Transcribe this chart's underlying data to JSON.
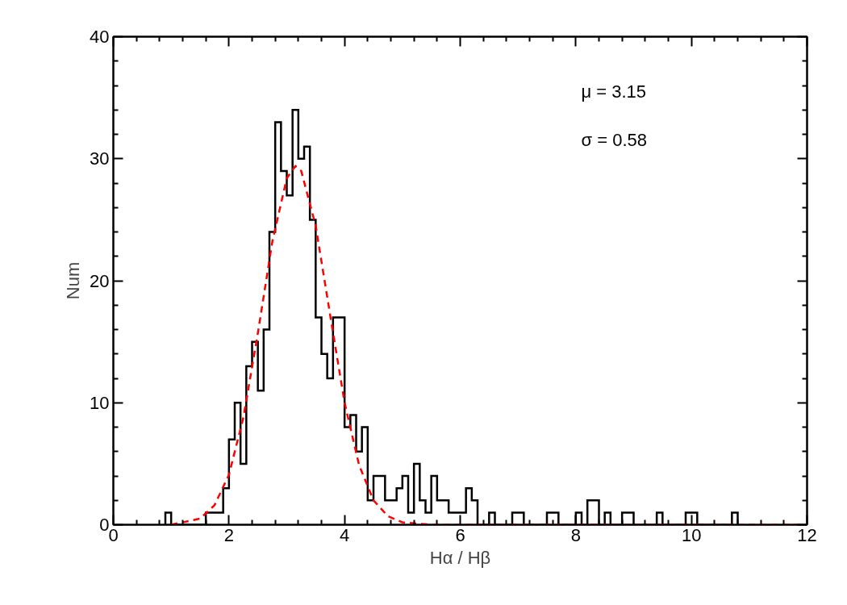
{
  "chart_data": {
    "type": "histogram",
    "xlabel": "Hα / Hβ",
    "ylabel": "Num",
    "annotations": [
      "μ = 3.15",
      "σ = 0.58"
    ],
    "bins": [
      0.9,
      1.0,
      1.1,
      1.2,
      1.3,
      1.4,
      1.5,
      1.6,
      1.7,
      1.8,
      1.9,
      2.0,
      2.1,
      2.2,
      2.3,
      2.4,
      2.5,
      2.6,
      2.7,
      2.8,
      2.9,
      3.0,
      3.1,
      3.2,
      3.3,
      3.4,
      3.5,
      3.6,
      3.7,
      3.8,
      3.9,
      4.0,
      4.1,
      4.2,
      4.3,
      4.4,
      4.5,
      4.6,
      4.7,
      4.8,
      4.9,
      5.0,
      5.1,
      5.2,
      5.3,
      5.4,
      5.5,
      5.6,
      5.7,
      5.8,
      5.9,
      6.0,
      6.1,
      6.2,
      6.3,
      6.4,
      6.5,
      6.6,
      6.7,
      6.8,
      6.9,
      7.0,
      7.1,
      7.2,
      7.3,
      7.4,
      7.5,
      7.6,
      7.7,
      7.8,
      7.9,
      8.0,
      8.1,
      8.2,
      8.3,
      8.4,
      8.5,
      8.6,
      8.7,
      8.8,
      8.9,
      9.0,
      9.1,
      9.2,
      9.3,
      9.4,
      9.5,
      9.6,
      9.7,
      9.8,
      9.9,
      10.0,
      10.1,
      10.2,
      10.3,
      10.4,
      10.5,
      10.6,
      10.7,
      10.8
    ],
    "series": [
      {
        "color": "#000000",
        "values": [
          1,
          0,
          0,
          0,
          0,
          0,
          0,
          1,
          1,
          1,
          3,
          7,
          10,
          5,
          13,
          15,
          11,
          16,
          24,
          33,
          29,
          27,
          34,
          30,
          31,
          25,
          17,
          14,
          12,
          17,
          17,
          8,
          9,
          6,
          8,
          2,
          4,
          4,
          2,
          2,
          3,
          4,
          1,
          5,
          2,
          1,
          4,
          2,
          2,
          1,
          1,
          1,
          3,
          2,
          0,
          0,
          1,
          0,
          0,
          0,
          1,
          1,
          0,
          0,
          0,
          0,
          1,
          1,
          0,
          0,
          0,
          1,
          0,
          2,
          2,
          0,
          1,
          0,
          0,
          1,
          1,
          0,
          0,
          0,
          0,
          1,
          0,
          0,
          0,
          0,
          1,
          1,
          0,
          0,
          0,
          0,
          0,
          0,
          1
        ]
      },
      {
        "type": "line",
        "color": "#ff0000",
        "line_style": "dashed",
        "x": [
          1.0,
          1.5,
          1.75,
          2.0,
          2.25,
          2.5,
          2.75,
          3.0,
          3.15,
          3.25,
          3.5,
          3.75,
          4.0,
          4.25,
          4.5,
          4.75,
          5.0,
          5.5,
          6.0,
          12.0
        ],
        "values": [
          0.0,
          0.5,
          1.6,
          4.1,
          8.8,
          15.7,
          23.2,
          28.4,
          29.4,
          29.0,
          24.5,
          17.2,
          10.0,
          4.9,
          2.0,
          0.7,
          0.2,
          0.0,
          0.0,
          0.0
        ]
      }
    ],
    "xlim": [
      0,
      12
    ],
    "xticks": [
      0,
      2,
      4,
      6,
      8,
      10,
      12
    ],
    "ylim": [
      0,
      40
    ],
    "yticks": [
      0,
      10,
      20,
      30,
      40
    ],
    "grid": false,
    "marker": "none"
  }
}
